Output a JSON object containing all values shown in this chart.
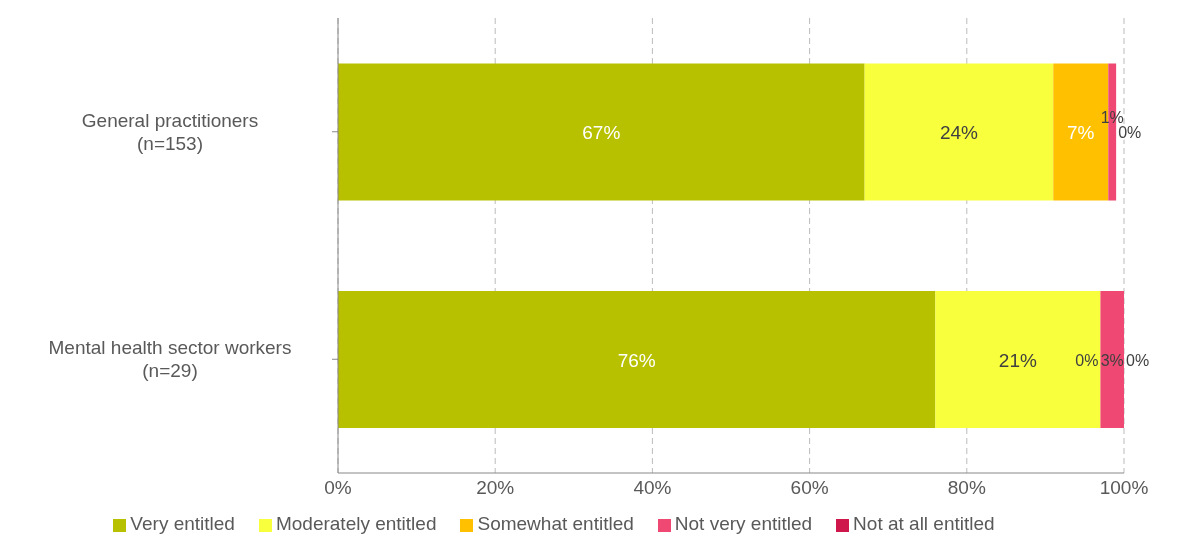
{
  "chart_data": {
    "type": "bar",
    "orientation": "horizontal",
    "stacked": true,
    "categories": [
      "General practitioners\n(n=153)",
      "Mental health sector workers\n(n=29)"
    ],
    "series": [
      {
        "name": "Very entitled",
        "color": "#b8c100",
        "values": [
          67,
          76
        ],
        "value_labels": [
          "67%",
          "76%"
        ]
      },
      {
        "name": "Moderately entitled",
        "color": "#f8ff3c",
        "values": [
          24,
          21
        ],
        "value_labels": [
          "24%",
          "21%"
        ]
      },
      {
        "name": "Somewhat entitled",
        "color": "#ffc000",
        "values": [
          7,
          0
        ],
        "value_labels": [
          "7%",
          "0%"
        ]
      },
      {
        "name": "Not very entitled",
        "color": "#ee4873",
        "values": [
          1,
          3
        ],
        "value_labels": [
          "1%",
          "3%"
        ]
      },
      {
        "name": "Not at all entitled",
        "color": "#d0174b",
        "values": [
          0,
          0
        ],
        "value_labels": [
          "0%",
          "0%"
        ]
      }
    ],
    "xlim": [
      0,
      100
    ],
    "xticks": [
      {
        "value": 0,
        "label": "0%"
      },
      {
        "value": 20,
        "label": "20%"
      },
      {
        "value": 40,
        "label": "40%"
      },
      {
        "value": 60,
        "label": "60%"
      },
      {
        "value": 80,
        "label": "80%"
      },
      {
        "value": 100,
        "label": "100%"
      }
    ],
    "grid": "x",
    "legend": "bottom"
  }
}
